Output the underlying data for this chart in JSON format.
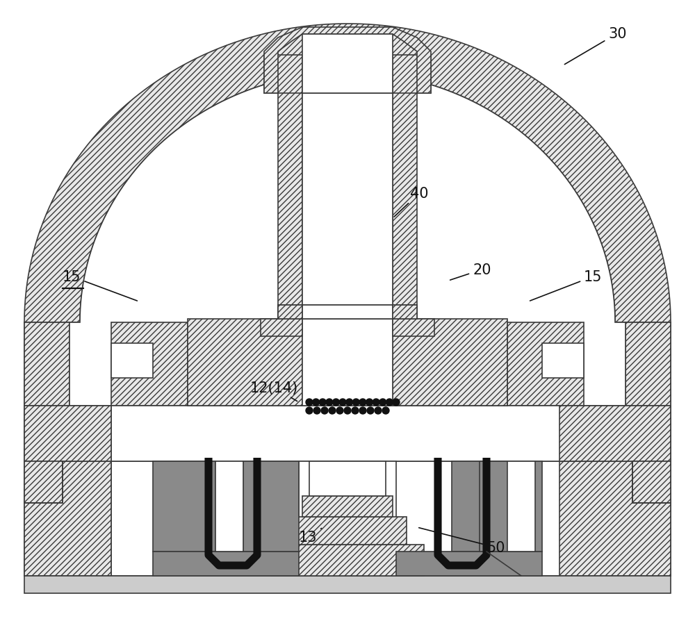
{
  "bg_color": "#ffffff",
  "line_color": "#3a3a3a",
  "hatch_lw": 0.5,
  "main_lw": 1.2,
  "dark_fill": "#8a8a8a",
  "mid_fill": "#b0b0b0",
  "light_fill": "#e8e8e8",
  "white_fill": "#ffffff",
  "fig_width": 10.0,
  "fig_height": 8.95,
  "dpi": 100
}
